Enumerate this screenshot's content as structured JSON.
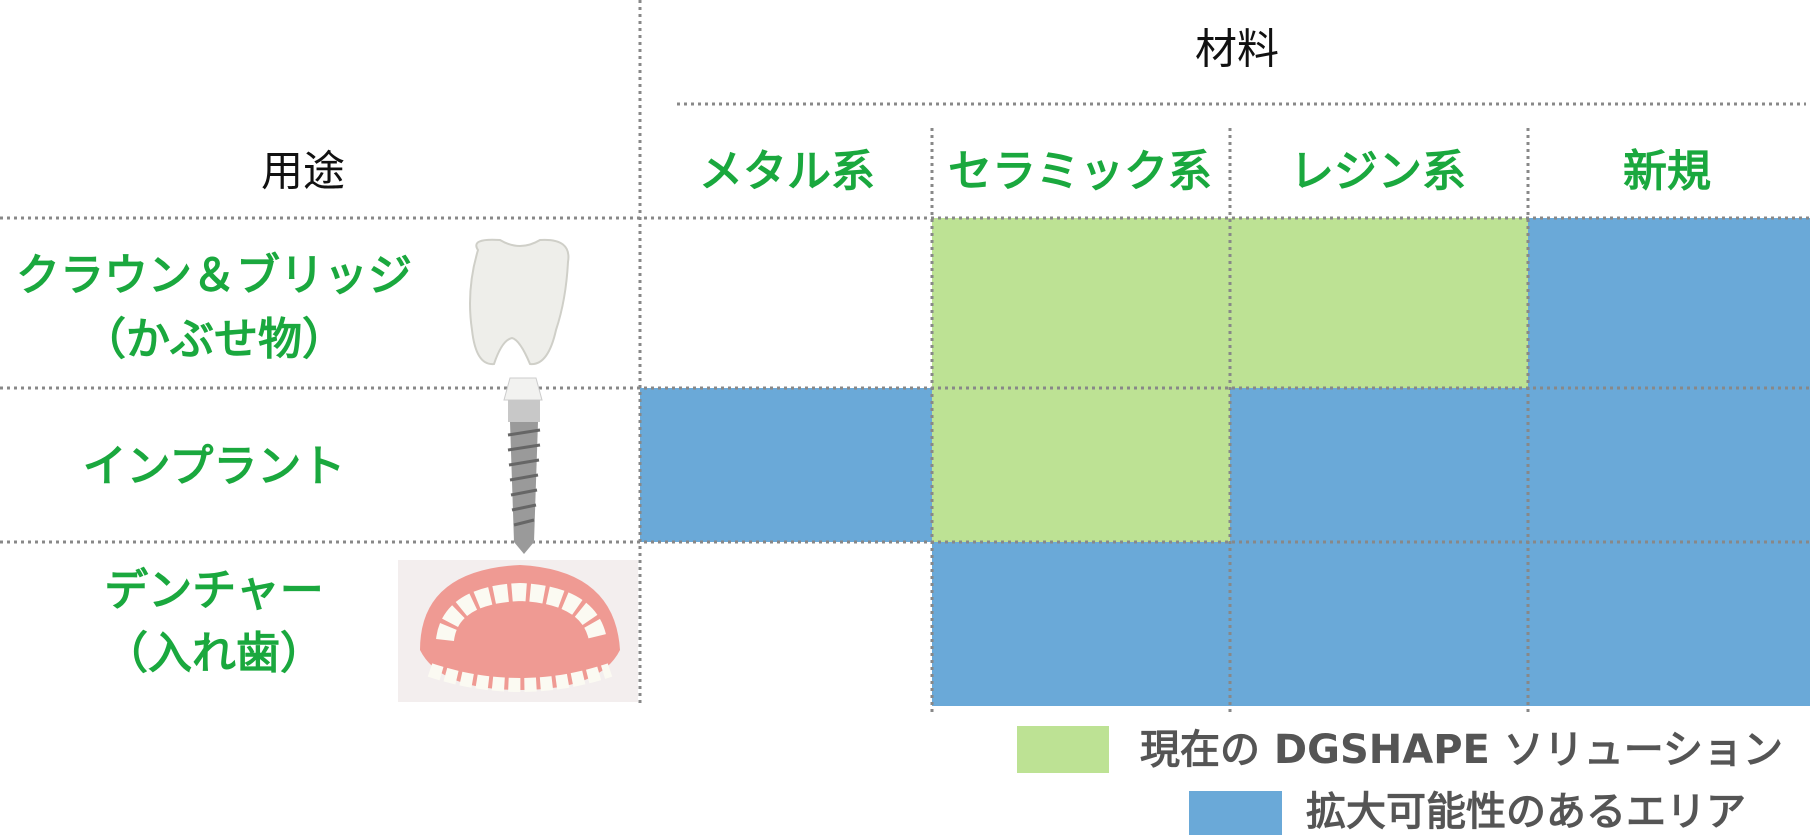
{
  "header": {
    "material": "材料",
    "usage": "用途"
  },
  "columns": [
    "メタル系",
    "セラミック系",
    "レジン系",
    "新規"
  ],
  "rows": [
    {
      "label": [
        "クラウン＆ブリッジ",
        "（かぶせ物）"
      ]
    },
    {
      "label": [
        "インプラント"
      ]
    },
    {
      "label": [
        "デンチャー",
        "（入れ歯）"
      ]
    }
  ],
  "legend": [
    "現在の DGSHAPE ソリューション",
    "拡大可能性のあるエリア"
  ]
}
